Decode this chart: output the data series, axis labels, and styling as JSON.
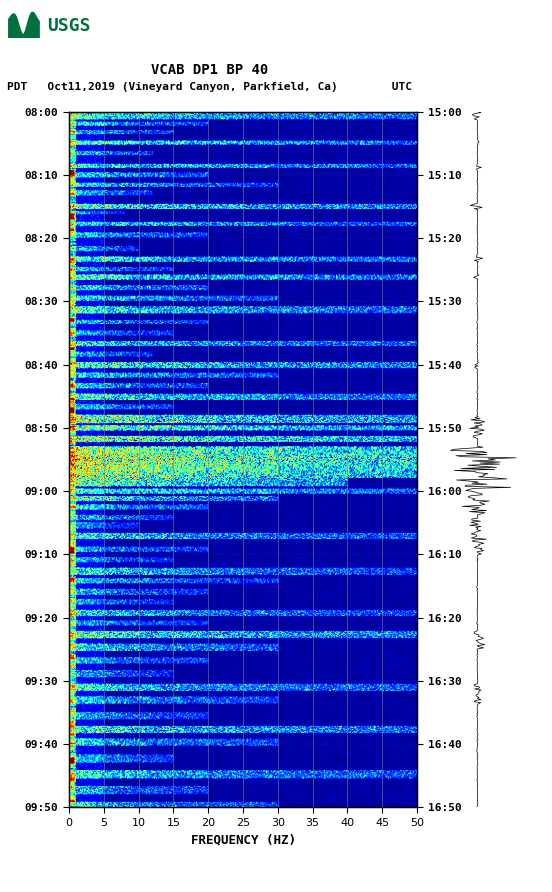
{
  "title_line1": "VCAB DP1 BP 40",
  "title_line2": "PDT   Oct11,2019 (Vineyard Canyon, Parkfield, Ca)        UTC",
  "left_yticks": [
    "08:00",
    "08:10",
    "08:20",
    "08:30",
    "08:40",
    "08:50",
    "09:00",
    "09:10",
    "09:20",
    "09:30",
    "09:40",
    "09:50"
  ],
  "right_yticks": [
    "15:00",
    "15:10",
    "15:20",
    "15:30",
    "15:40",
    "15:50",
    "16:00",
    "16:10",
    "16:20",
    "16:30",
    "16:40",
    "16:50"
  ],
  "xticks": [
    0,
    5,
    10,
    15,
    20,
    25,
    30,
    35,
    40,
    45,
    50
  ],
  "xlabel": "FREQUENCY (HZ)",
  "freq_min": 0,
  "freq_max": 50,
  "colormap": "jet",
  "background_color": "#ffffff",
  "usgs_color": "#00703C",
  "grid_color": "#808080",
  "grid_alpha": 0.6,
  "waveform_color": "#000000",
  "vlines_freq": [
    5,
    10,
    15,
    20,
    25,
    30,
    35,
    40,
    45
  ]
}
